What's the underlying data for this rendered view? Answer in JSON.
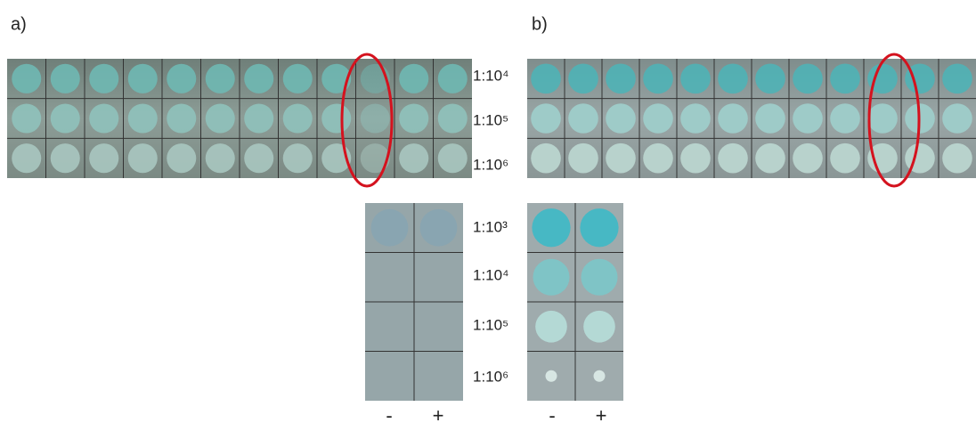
{
  "panels": [
    {
      "label": "a)"
    },
    {
      "label": "b)"
    }
  ],
  "top_dilutions": [
    "1:10⁴",
    "1:10⁵",
    "1:10⁶"
  ],
  "bottom_dilutions": [
    "1:10³",
    "1:10⁴",
    "1:10⁵",
    "1:10⁶"
  ],
  "signs": [
    "-",
    "+"
  ]
}
